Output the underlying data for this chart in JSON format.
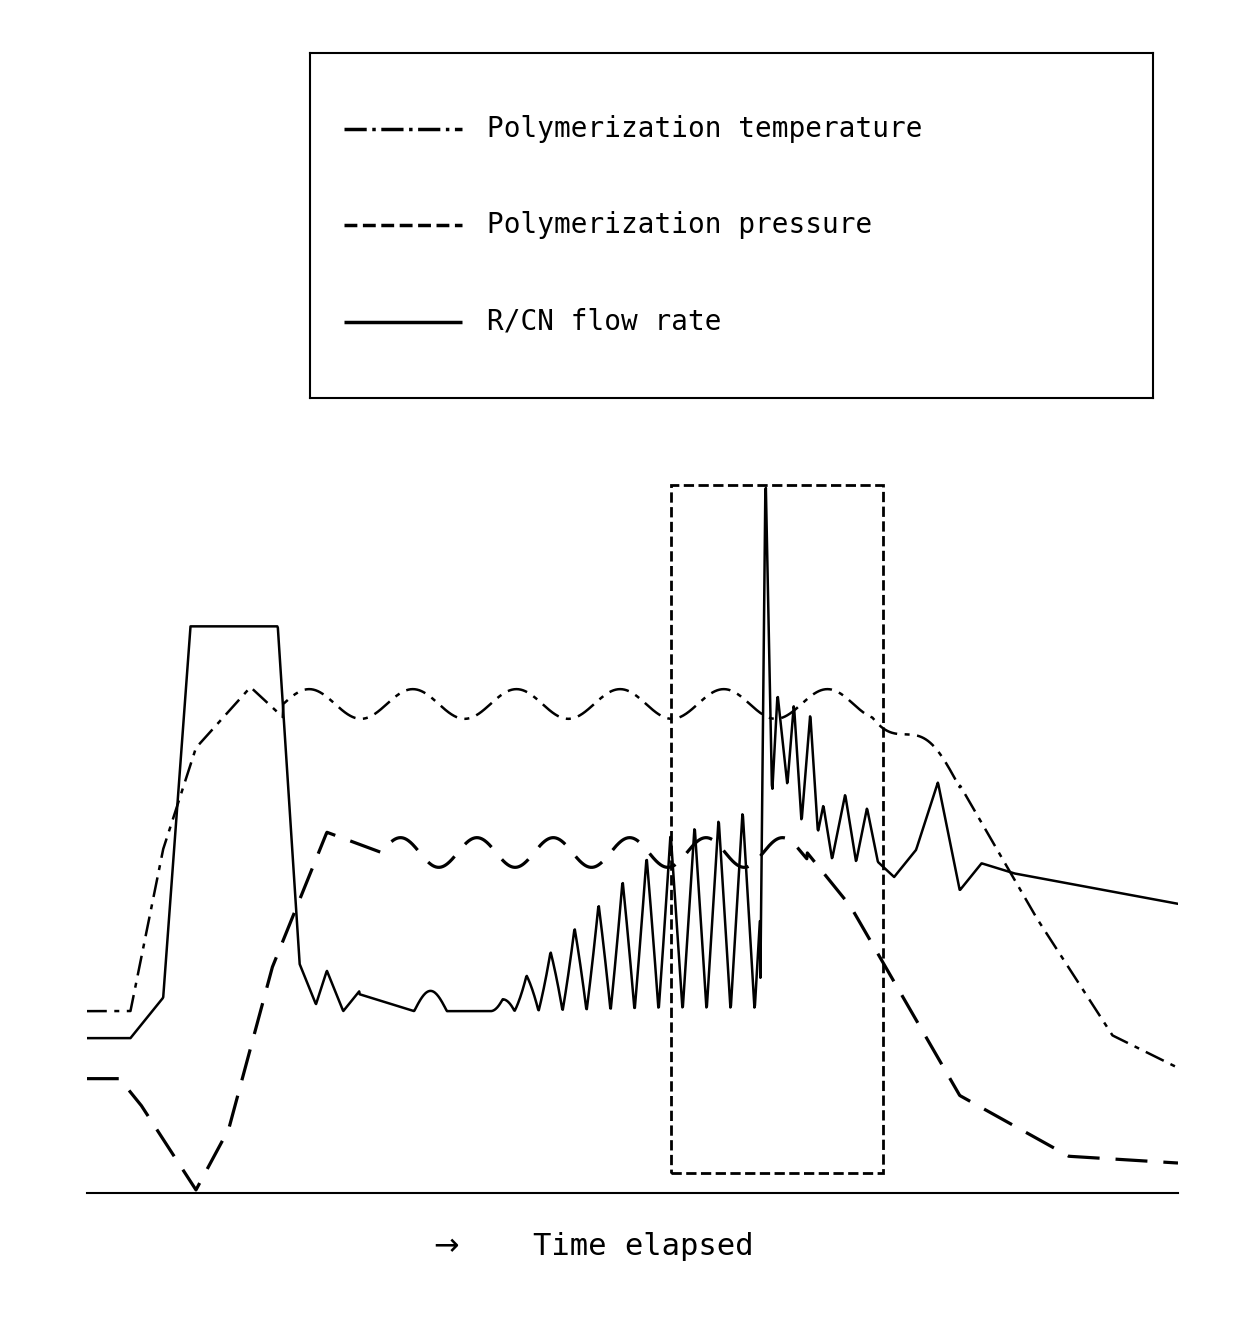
{
  "legend_entries": [
    {
      "label": "Polymerization temperature",
      "linestyle": "dashdot"
    },
    {
      "label": "Polymerization pressure",
      "linestyle": "dashed"
    },
    {
      "label": "R/CN flow rate",
      "linestyle": "solid"
    }
  ],
  "background_color": "#ffffff",
  "line_color": "#000000",
  "legend_fontsize": 20,
  "xlabel": "Time elapsed",
  "xlabel_fontsize": 22
}
